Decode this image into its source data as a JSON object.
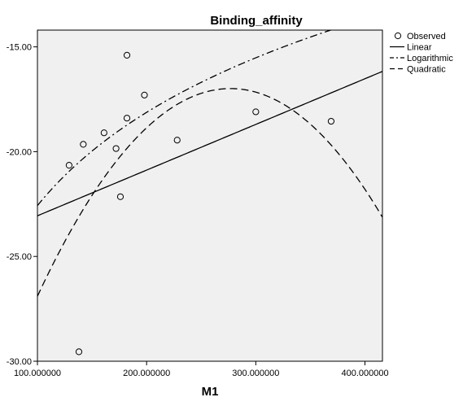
{
  "chart_data": {
    "type": "scatter",
    "title": "Binding_affinity",
    "xlabel": "M1",
    "ylabel": "",
    "xlim": [
      100,
      416
    ],
    "ylim": [
      -30,
      -14.2
    ],
    "x_ticks": [
      100,
      200,
      300,
      400
    ],
    "x_tick_labels": [
      "100.000000",
      "200.000000",
      "300.000000",
      "400.000000"
    ],
    "y_ticks": [
      -30,
      -25,
      -20,
      -15
    ],
    "y_tick_labels": [
      "-30.00",
      "-25.00",
      "-20.00",
      "-15.00"
    ],
    "grid": false,
    "legend_position": "top-right",
    "plot_background": "#f0f0f0",
    "series": [
      {
        "name": "Observed",
        "kind": "points",
        "marker": "open-circle",
        "points": [
          {
            "x": 129,
            "y": -20.65
          },
          {
            "x": 138,
            "y": -29.55
          },
          {
            "x": 142,
            "y": -19.65
          },
          {
            "x": 161,
            "y": -19.1
          },
          {
            "x": 172,
            "y": -19.85
          },
          {
            "x": 176,
            "y": -22.15
          },
          {
            "x": 182,
            "y": -18.4
          },
          {
            "x": 182,
            "y": -15.4
          },
          {
            "x": 198,
            "y": -17.3
          },
          {
            "x": 228,
            "y": -19.45
          },
          {
            "x": 300,
            "y": -18.1
          },
          {
            "x": 369,
            "y": -18.55
          }
        ]
      },
      {
        "name": "Linear",
        "kind": "fit",
        "line_style": "solid",
        "model": "linear",
        "coefficients": {
          "a": -25.24,
          "b": 0.0218
        }
      },
      {
        "name": "Logarithmic",
        "kind": "fit",
        "line_style": "dash-dot",
        "model": "logarithmic",
        "coefficients": {
          "a": -52.14,
          "b": 6.42
        }
      },
      {
        "name": "Quadratic",
        "kind": "fit",
        "line_style": "dashed",
        "model": "quadratic",
        "coefficients": {
          "a": -41.28,
          "b": 0.1755,
          "c": -0.000317
        }
      }
    ],
    "colors": {
      "marks": "#000000",
      "frame": "#000000",
      "background": "#ffffff"
    }
  }
}
